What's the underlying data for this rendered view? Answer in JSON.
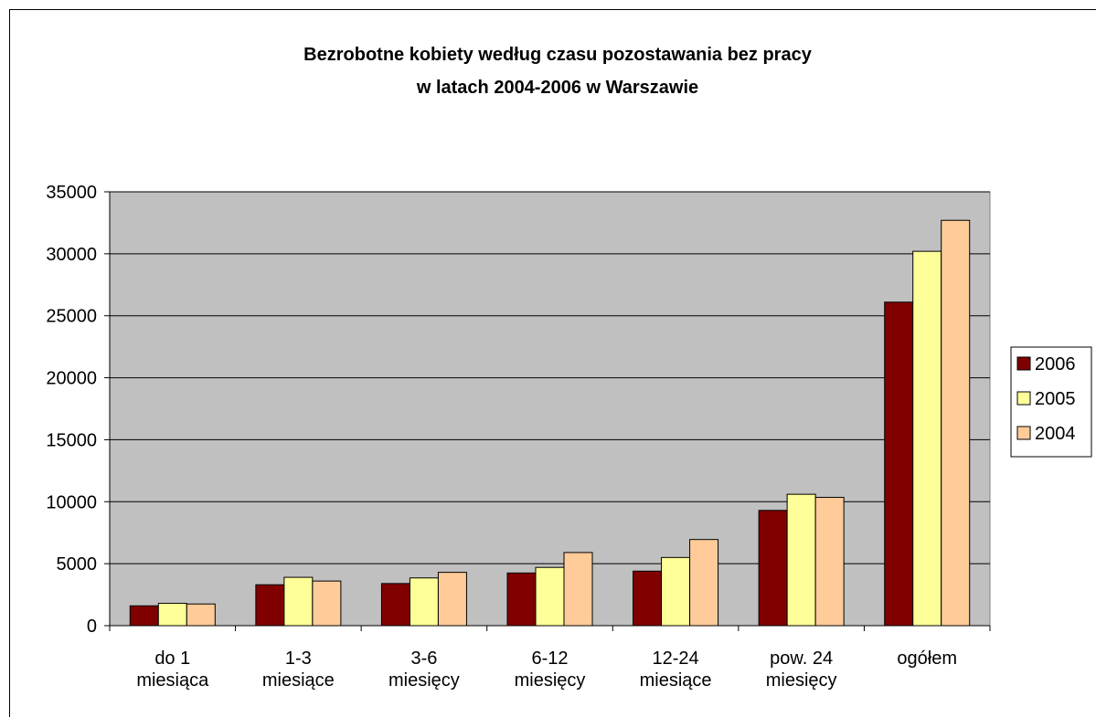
{
  "chart_data": {
    "type": "bar",
    "title": "Bezrobotne kobiety według czasu pozostawania bez pracy\nw latach 2004-2006 w Warszawie",
    "categories": [
      "do 1\nmiesiąca",
      "1-3\nmiesiące",
      "3-6\nmiesięcy",
      "6-12\nmiesięcy",
      "12-24\nmiesiące",
      "pow. 24\nmiesięcy",
      "ogółem"
    ],
    "series": [
      {
        "name": "2006",
        "color": "#800000",
        "values": [
          1600,
          3300,
          3400,
          4250,
          4400,
          9300,
          26100
        ]
      },
      {
        "name": "2005",
        "color": "#ffff99",
        "values": [
          1800,
          3900,
          3850,
          4700,
          5500,
          10600,
          30200
        ]
      },
      {
        "name": "2004",
        "color": "#ffcc99",
        "values": [
          1750,
          3600,
          4300,
          5900,
          6950,
          10350,
          32700
        ]
      }
    ],
    "ylim": [
      0,
      35000
    ],
    "yticks": [
      0,
      5000,
      10000,
      15000,
      20000,
      25000,
      30000,
      35000
    ],
    "grid": true,
    "legend": "right",
    "plot_background": "#c0c0c0"
  }
}
